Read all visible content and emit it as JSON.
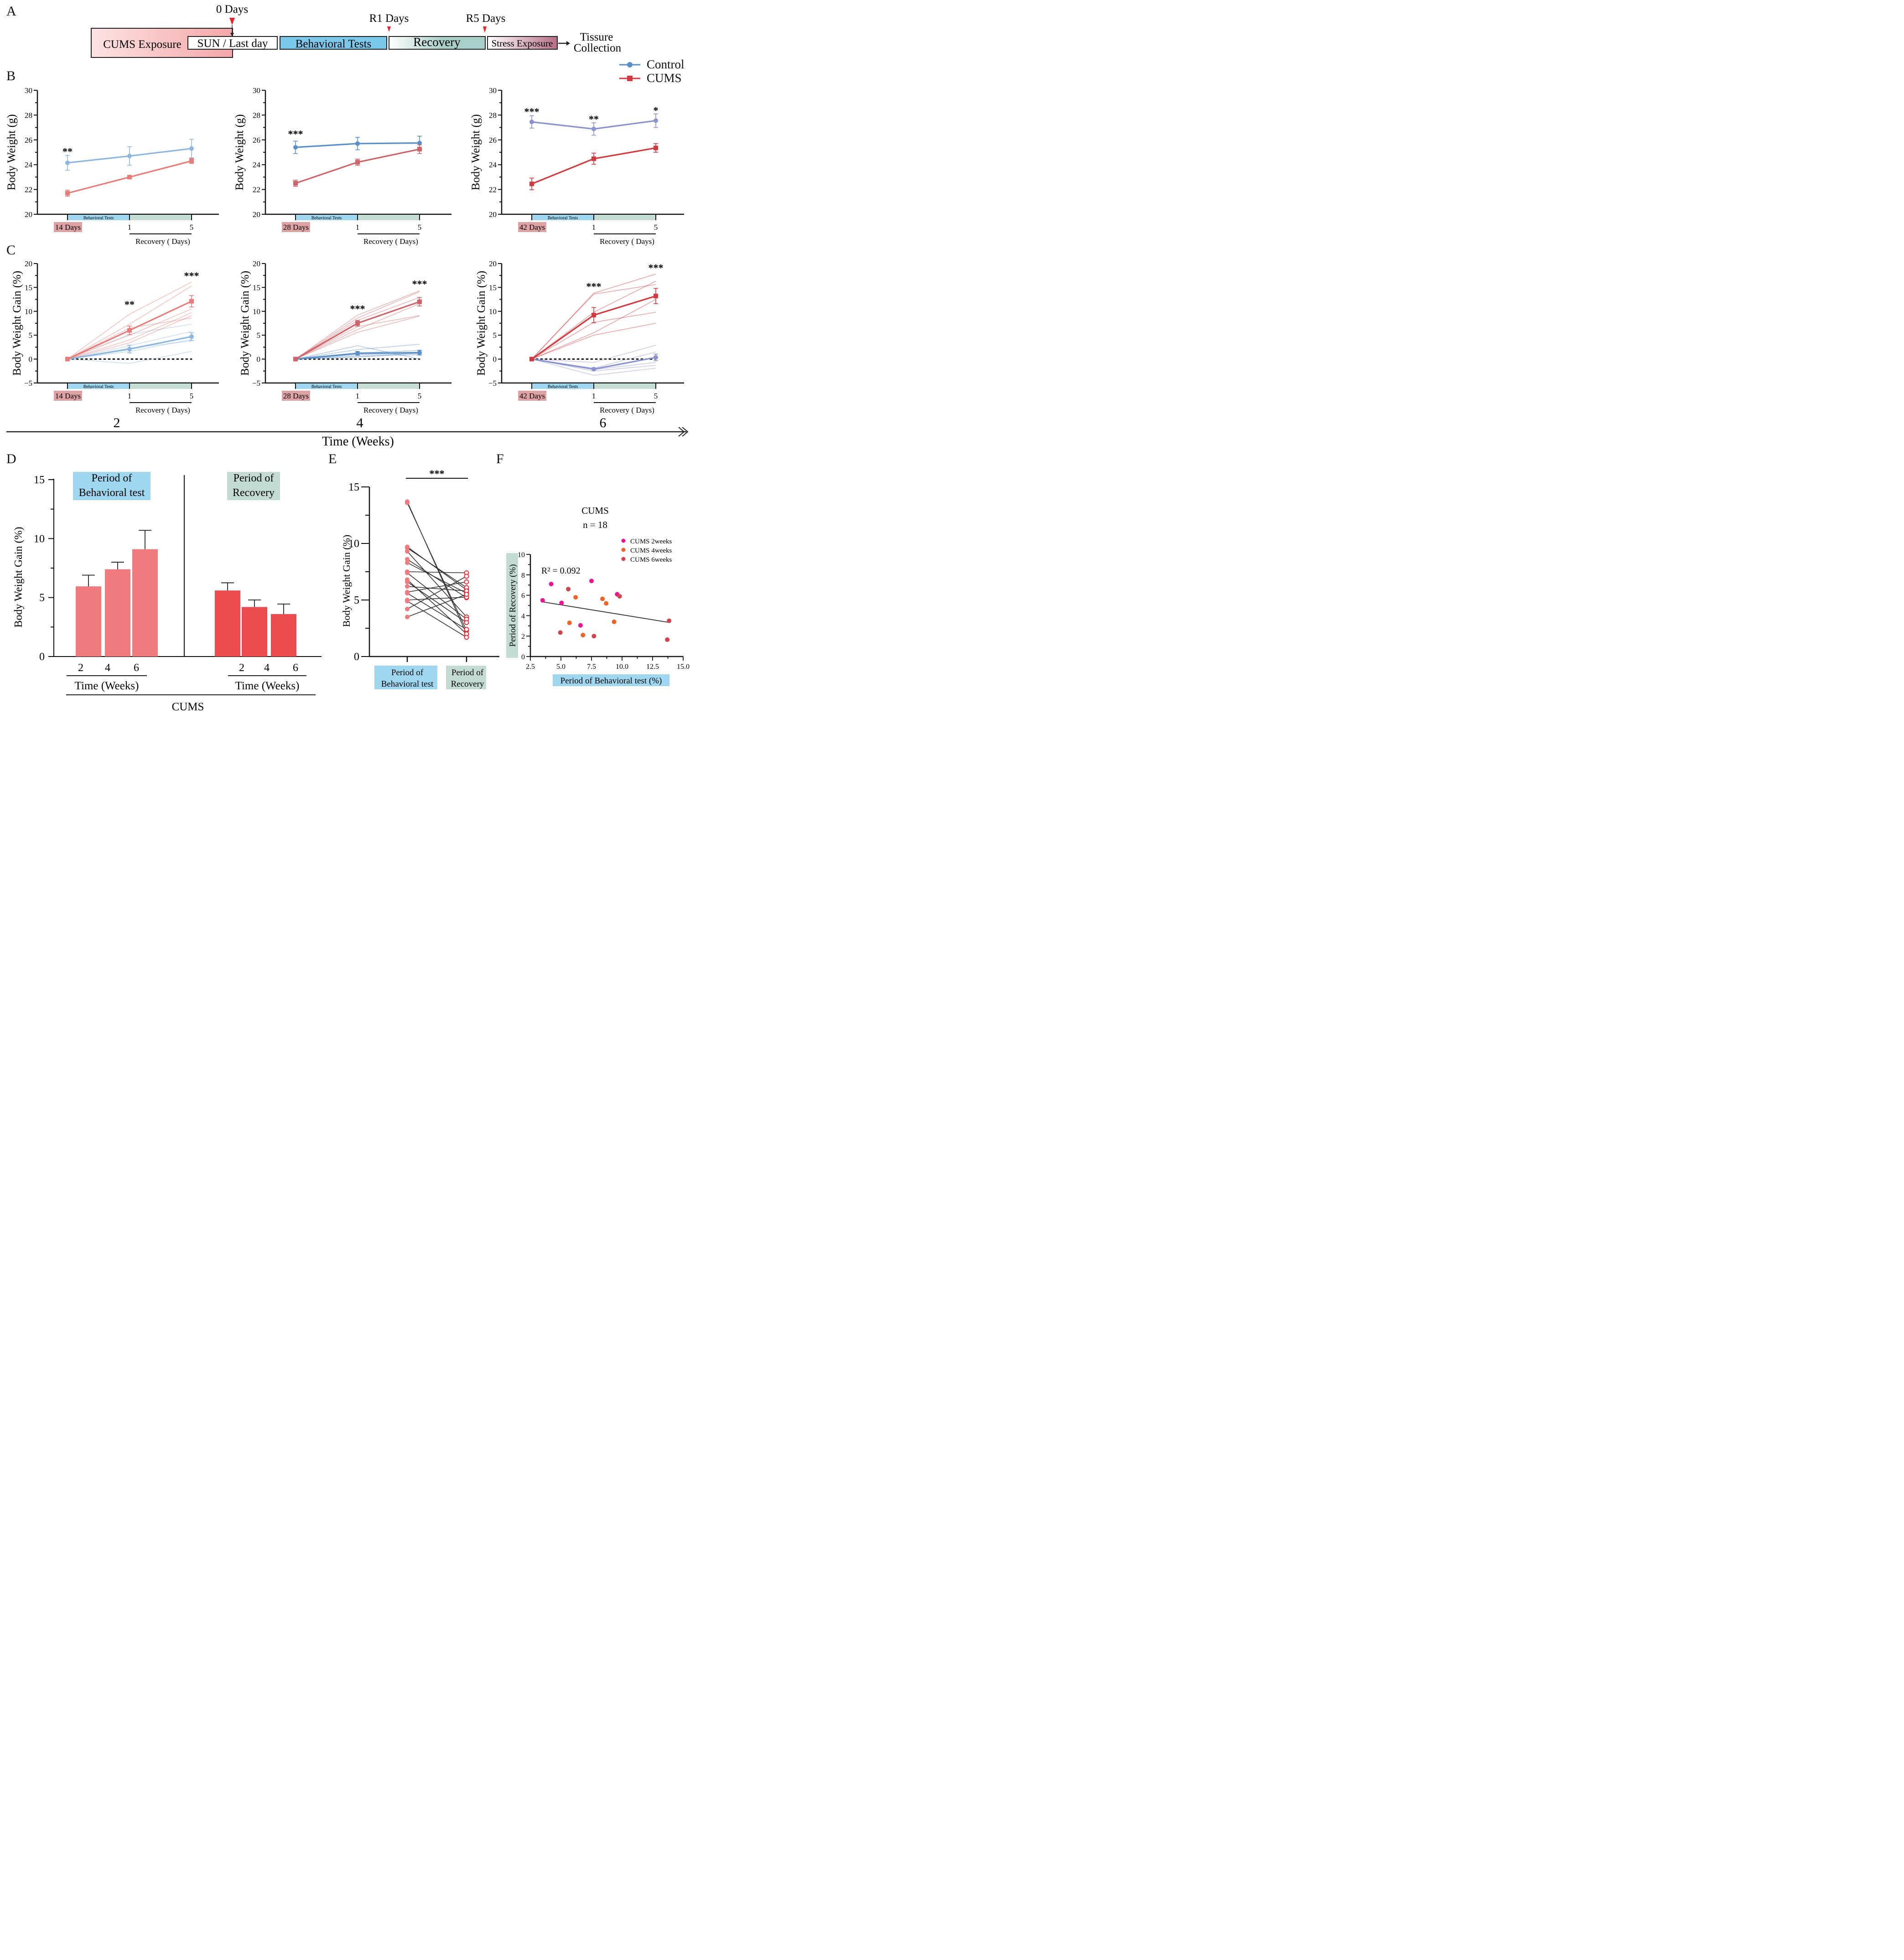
{
  "panels": {
    "A": "A",
    "B": "B",
    "C": "C",
    "D": "D",
    "E": "E",
    "F": "F"
  },
  "timeline": {
    "markers": [
      "0 Days",
      "R1 Days",
      "R5 Days"
    ],
    "boxes": [
      "CUMS Exposure",
      "SUN / Last day",
      "Behavioral Tests",
      "Recovery",
      "Stress Exposure"
    ],
    "end_label_line1": "Tissure",
    "end_label_line2": "Collection",
    "colors": {
      "cums": "#f4a7a9",
      "behavioral": "#7cc8ea",
      "recovery": "#a9d0c8",
      "stress": "#c08399",
      "marker": "#e8252a"
    }
  },
  "legend": {
    "items": [
      {
        "name": "Control",
        "color": "#5b8fc7",
        "marker": "circle"
      },
      {
        "name": "CUMS",
        "color": "#d23a3f",
        "marker": "square"
      }
    ]
  },
  "time_axis": {
    "ticks": [
      "2",
      "4",
      "6"
    ],
    "label": "Time (Weeks)"
  },
  "chart_data": [
    {
      "id": "B1",
      "type": "line",
      "ylabel": "Body Weight (g)",
      "ylim": [
        20,
        30
      ],
      "yticks": [
        20,
        22,
        24,
        26,
        28,
        30
      ],
      "x": [
        "14 Days",
        "1",
        "5"
      ],
      "start_label": "14 Days",
      "band_label": "Behavioral Tests",
      "recovery_label": "Recovery ( Days)",
      "series": [
        {
          "name": "Control",
          "color": "#8fb7de",
          "values": [
            24.15,
            24.7,
            25.3
          ],
          "err": [
            0.6,
            0.75,
            0.75
          ]
        },
        {
          "name": "CUMS",
          "color": "#e77d78",
          "values": [
            21.7,
            23.0,
            24.3
          ],
          "err": [
            0.25,
            0.05,
            0.2
          ]
        }
      ],
      "significance": [
        {
          "x": 0,
          "label": "**",
          "y": 25.1
        }
      ]
    },
    {
      "id": "B2",
      "type": "line",
      "ylabel": "Body Weight (g)",
      "ylim": [
        20,
        30
      ],
      "yticks": [
        20,
        22,
        24,
        26,
        28,
        30
      ],
      "x": [
        "28 Days",
        "1",
        "5"
      ],
      "start_label": "28 Days",
      "band_label": "Behavioral  Tests",
      "recovery_label": "Recovery ( Days)",
      "series": [
        {
          "name": "Control",
          "color": "#5b8fc7",
          "values": [
            25.4,
            25.7,
            25.75
          ],
          "err": [
            0.5,
            0.5,
            0.55
          ]
        },
        {
          "name": "CUMS",
          "color": "#cf6468",
          "values": [
            22.5,
            24.2,
            25.25
          ],
          "err": [
            0.25,
            0.25,
            0.35
          ]
        }
      ],
      "significance": [
        {
          "x": 0,
          "label": "***",
          "y": 26.5
        }
      ]
    },
    {
      "id": "B3",
      "type": "line",
      "ylabel": "Body Weight (g)",
      "ylim": [
        20,
        30
      ],
      "yticks": [
        20,
        22,
        24,
        26,
        28,
        30
      ],
      "x": [
        "42 Days",
        "1",
        "5"
      ],
      "start_label": "42 Days",
      "band_label": "Behavioral Tests",
      "recovery_label": "Recovery ( Days)",
      "series": [
        {
          "name": "Control",
          "color": "#8b93cf",
          "values": [
            27.45,
            26.88,
            27.55
          ],
          "err": [
            0.5,
            0.5,
            0.55
          ]
        },
        {
          "name": "CUMS",
          "color": "#d23a3f",
          "values": [
            22.45,
            24.48,
            25.35
          ],
          "err": [
            0.47,
            0.45,
            0.35
          ]
        }
      ],
      "significance": [
        {
          "x": 0,
          "label": "***",
          "y": 28.3
        },
        {
          "x": 1,
          "label": "**",
          "y": 27.7
        },
        {
          "x": 2,
          "label": "*",
          "y": 28.4
        }
      ]
    },
    {
      "id": "C1",
      "type": "line",
      "ylabel": "Body Weight Gain (%)",
      "ylim": [
        -5,
        20
      ],
      "yticks": [
        -5,
        0,
        5,
        10,
        15,
        20
      ],
      "x": [
        "14 Days",
        "1",
        "5"
      ],
      "start_label": "14 Days",
      "band_label": "Behavioral Tests",
      "recovery_label": "Recovery ( Days)",
      "series": [
        {
          "name": "Control",
          "color": "#8fb7de",
          "values": [
            0,
            2.1,
            4.7
          ],
          "err": [
            0,
            0.8,
            0.8
          ],
          "individuals": [
            [
              0,
              5.2,
              7.3
            ],
            [
              0,
              2.8,
              5.8
            ],
            [
              0,
              2.0,
              4.8
            ],
            [
              0,
              1.6,
              4.1
            ],
            [
              0,
              2.3,
              3.8
            ],
            [
              0,
              -0.9,
              1.6
            ]
          ]
        },
        {
          "name": "CUMS",
          "color": "#e77d78",
          "values": [
            0,
            6.0,
            12.1
          ],
          "err": [
            0,
            0.9,
            1.2
          ],
          "individuals": [
            [
              0,
              9.4,
              16.1
            ],
            [
              0,
              7.3,
              15.3
            ],
            [
              0,
              6.5,
              8.6
            ],
            [
              0,
              5.0,
              10.5
            ],
            [
              0,
              4.0,
              9.7
            ],
            [
              0,
              3.4,
              9.1
            ]
          ]
        }
      ],
      "significance": [
        {
          "x": 1,
          "label": "**",
          "y": 11.5
        },
        {
          "x": 2,
          "label": "***",
          "y": 17.5
        }
      ]
    },
    {
      "id": "C2",
      "type": "line",
      "ylabel": "Body Weight Gain (%)",
      "ylim": [
        -5,
        20
      ],
      "yticks": [
        -5,
        0,
        5,
        10,
        15,
        20
      ],
      "x": [
        "28 Days",
        "1",
        "5"
      ],
      "start_label": "28 Days",
      "band_label": "Behavioral  Tests",
      "recovery_label": "Recovery ( Days)",
      "series": [
        {
          "name": "Control",
          "color": "#5b8fc7",
          "values": [
            0,
            1.2,
            1.35
          ],
          "err": [
            0,
            0.4,
            0.5
          ],
          "individuals": [
            [
              0,
              2.8,
              0.0
            ],
            [
              0,
              2.0,
              3.1
            ],
            [
              0,
              1.3,
              1.8
            ],
            [
              0,
              0.9,
              1.1
            ],
            [
              0,
              0.4,
              1.3
            ],
            [
              0,
              0.6,
              0.9
            ]
          ]
        },
        {
          "name": "CUMS",
          "color": "#cf6468",
          "values": [
            0,
            7.5,
            12.0
          ],
          "err": [
            0,
            0.6,
            0.9
          ],
          "individuals": [
            [
              0,
              9.2,
              14.3
            ],
            [
              0,
              8.6,
              14.1
            ],
            [
              0,
              8.1,
              12.9
            ],
            [
              0,
              6.8,
              9.1
            ],
            [
              0,
              6.2,
              11.6
            ],
            [
              0,
              5.6,
              9.0
            ]
          ]
        }
      ],
      "significance": [
        {
          "x": 1,
          "label": "***",
          "y": 10.6
        },
        {
          "x": 2,
          "label": "***",
          "y": 15.8
        }
      ]
    },
    {
      "id": "C3",
      "type": "line",
      "ylabel": "Body Weight Gain (%)",
      "ylim": [
        -5,
        20
      ],
      "yticks": [
        -5,
        0,
        5,
        10,
        15,
        20
      ],
      "x": [
        "42 Days",
        "1",
        "5"
      ],
      "start_label": "42 Days",
      "band_label": "Behavioral Tests",
      "recovery_label": "Recovery ( Days)",
      "series": [
        {
          "name": "Control",
          "color": "#8b93cf",
          "values": [
            0,
            -2.1,
            0.35
          ],
          "err": [
            0,
            0.2,
            0.7
          ],
          "individuals": [
            [
              0,
              -0.7,
              2.9
            ],
            [
              0,
              -1.9,
              1.5
            ],
            [
              0,
              -2.2,
              -0.7
            ],
            [
              0,
              -2.5,
              -1.3
            ],
            [
              0,
              -3.4,
              -1.9
            ]
          ]
        },
        {
          "name": "CUMS",
          "color": "#d23a3f",
          "values": [
            0,
            9.2,
            13.2
          ],
          "err": [
            0,
            1.6,
            1.6
          ],
          "individuals": [
            [
              0,
              13.8,
              17.8
            ],
            [
              0,
              13.6,
              15.6
            ],
            [
              0,
              9.8,
              16.3
            ],
            [
              0,
              7.7,
              9.8
            ],
            [
              0,
              5.5,
              12.5
            ],
            [
              0,
              5.0,
              7.5
            ]
          ]
        }
      ],
      "significance": [
        {
          "x": 1,
          "label": "***",
          "y": 15.3
        },
        {
          "x": 2,
          "label": "***",
          "y": 19.2
        }
      ]
    },
    {
      "id": "D",
      "type": "bar",
      "ylabel": "Body Weight Gain (%)",
      "ylim": [
        0,
        15
      ],
      "yticks": [
        0,
        5,
        10,
        15
      ],
      "groups": [
        {
          "title_line1": "Period of",
          "title_line2": "Behavioral test",
          "bg": "#9fd7f0",
          "color": "#f07b7f",
          "categories": [
            "2",
            "4",
            "6"
          ],
          "values": [
            5.95,
            7.4,
            9.1
          ],
          "err": [
            0.95,
            0.6,
            1.6
          ],
          "xlabel": "Time (Weeks)"
        },
        {
          "title_line1": "Period of",
          "title_line2": "Recovery",
          "bg": "#c3dbd3",
          "color": "#ec4b50",
          "categories": [
            "2",
            "4",
            "6"
          ],
          "values": [
            5.6,
            4.2,
            3.6
          ],
          "err": [
            0.65,
            0.6,
            0.85
          ],
          "xlabel": "Time (Weeks)"
        }
      ],
      "group_label": "CUMS"
    },
    {
      "id": "E",
      "type": "scatter",
      "ylabel": "Body Weight Gain (%)",
      "ylim": [
        0,
        15
      ],
      "yticks": [
        0,
        5,
        10,
        15
      ],
      "categories": [
        {
          "line1": "Period of",
          "line2": "Behavioral test",
          "bg": "#9fd7f0"
        },
        {
          "line1": "Period of",
          "line2": "Recovery",
          "bg": "#c3dbd3"
        }
      ],
      "significance": "***",
      "pairs": [
        [
          13.7,
          2.0
        ],
        [
          13.6,
          2.3
        ],
        [
          9.7,
          5.9
        ],
        [
          9.6,
          6.1
        ],
        [
          9.3,
          3.5
        ],
        [
          8.6,
          5.2
        ],
        [
          8.3,
          5.6
        ],
        [
          7.5,
          7.4
        ],
        [
          7.4,
          3.3
        ],
        [
          6.8,
          2.0
        ],
        [
          6.6,
          3.0
        ],
        [
          6.2,
          5.8
        ],
        [
          5.7,
          6.6
        ],
        [
          5.6,
          2.4
        ],
        [
          5.0,
          5.25
        ],
        [
          4.9,
          1.7
        ],
        [
          4.2,
          7.1
        ],
        [
          3.5,
          5.5
        ]
      ],
      "before_color": "#ef7b80",
      "after_color": "#e8262e"
    },
    {
      "id": "F",
      "type": "scatter",
      "title_line1": "CUMS",
      "title_line2": "n = 18",
      "xlabel": "Period of Behavioral test (%)",
      "ylabel": "Period of Recovery (%)",
      "xlim": [
        2.5,
        15.0
      ],
      "ylim": [
        0,
        10
      ],
      "xticks": [
        "2.5",
        "5.0",
        "7.5",
        "10.0",
        "12.5",
        "15.0"
      ],
      "yticks": [
        0,
        2,
        4,
        6,
        8,
        10
      ],
      "annotation": "R² = 0.092",
      "fit": {
        "x": [
          3.5,
          13.8
        ],
        "y": [
          5.35,
          3.35
        ]
      },
      "series": [
        {
          "name": "CUMS 2weeks",
          "color": "#ea1593",
          "points": [
            [
              3.5,
              5.5
            ],
            [
              4.2,
              7.1
            ],
            [
              5.05,
              5.25
            ],
            [
              6.6,
              3.05
            ],
            [
              7.5,
              7.4
            ],
            [
              9.6,
              6.1
            ]
          ]
        },
        {
          "name": "CUMS 4weeks",
          "color": "#f0642a",
          "points": [
            [
              5.7,
              3.3
            ],
            [
              6.2,
              5.8
            ],
            [
              6.8,
              2.1
            ],
            [
              8.4,
              5.65
            ],
            [
              8.7,
              5.2
            ],
            [
              9.35,
              3.4
            ]
          ]
        },
        {
          "name": "CUMS 6weeks",
          "color": "#d2444c",
          "points": [
            [
              4.95,
              2.35
            ],
            [
              5.6,
              6.6
            ],
            [
              7.7,
              2.0
            ],
            [
              9.8,
              5.9
            ],
            [
              13.85,
              3.5
            ],
            [
              13.7,
              1.65
            ]
          ]
        }
      ]
    }
  ]
}
